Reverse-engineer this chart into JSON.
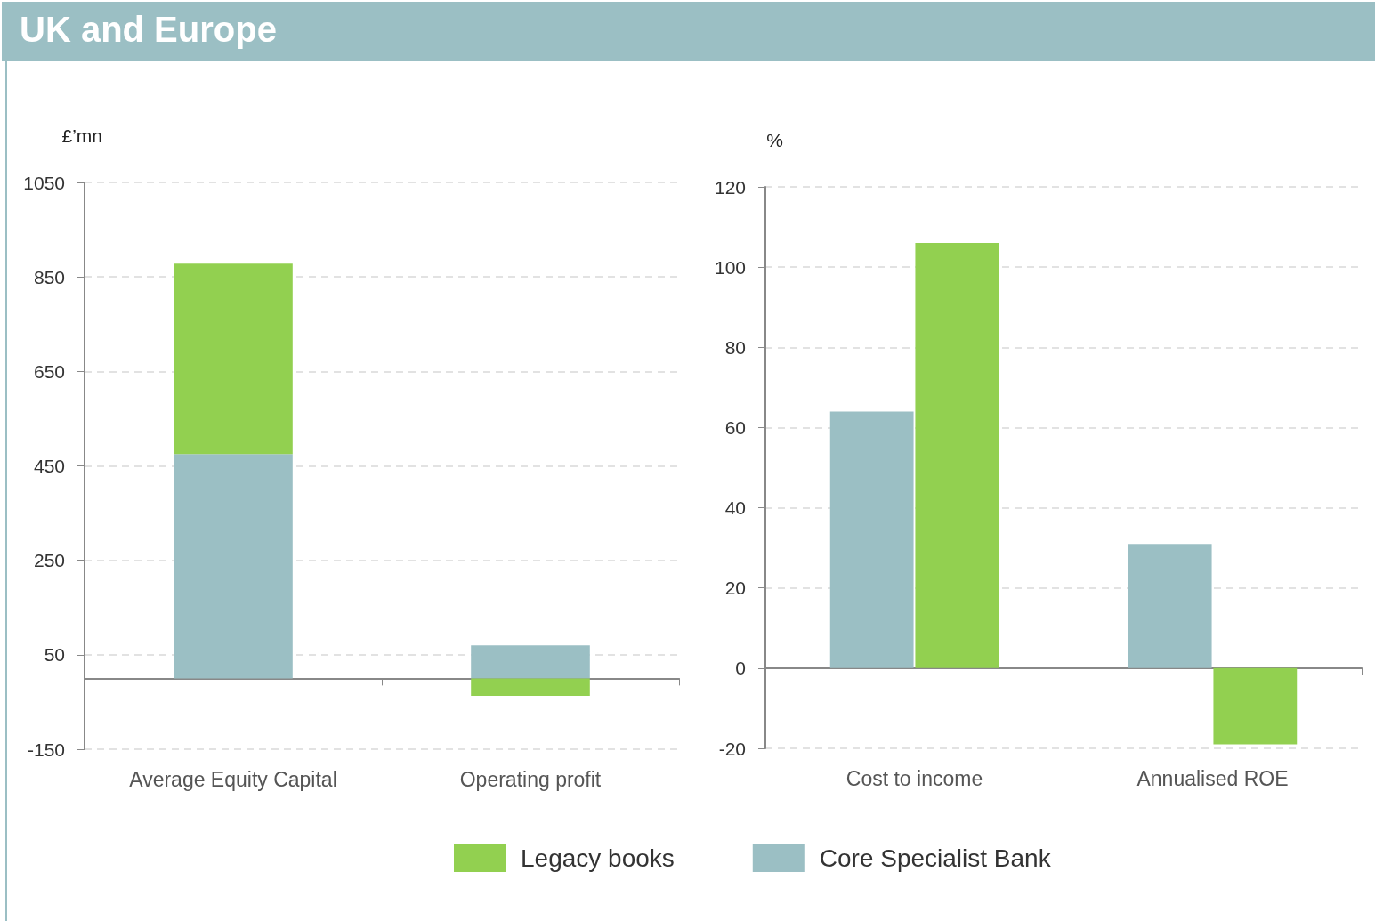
{
  "chart_data": [
    {
      "type": "bar",
      "title": "UK and Europe",
      "ylabel": "£’mn",
      "categories": [
        "Average Equity Capital",
        "Operating profit"
      ],
      "stacked": true,
      "series": [
        {
          "name": "Core Specialist Bank",
          "color": "#9bbfc4",
          "values": [
            475,
            70
          ]
        },
        {
          "name": "Legacy books",
          "color": "#92d050",
          "values": [
            403,
            -37
          ]
        }
      ],
      "ylim": [
        -150,
        1050
      ],
      "yticks": [
        -150,
        50,
        250,
        450,
        650,
        850,
        1050
      ],
      "grid": "y",
      "legend": "bottom"
    },
    {
      "type": "bar",
      "ylabel": "%",
      "categories": [
        "Cost to income",
        "Annualised ROE"
      ],
      "series": [
        {
          "color": "#9bbfc4",
          "values": [
            64,
            31
          ]
        },
        {
          "color": "#92d050",
          "values": [
            106,
            -19
          ]
        }
      ],
      "ylim": [
        -20,
        120
      ],
      "yticks": [
        -20,
        0,
        20,
        40,
        60,
        80,
        100,
        120
      ],
      "grid": "y"
    }
  ]
}
